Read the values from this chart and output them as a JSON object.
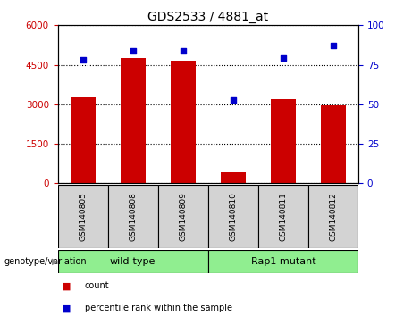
{
  "title": "GDS2533 / 4881_at",
  "categories": [
    "GSM140805",
    "GSM140808",
    "GSM140809",
    "GSM140810",
    "GSM140811",
    "GSM140812"
  ],
  "bar_values": [
    3250,
    4750,
    4650,
    420,
    3200,
    2950
  ],
  "scatter_values": [
    78,
    84,
    84,
    53,
    79,
    87
  ],
  "bar_color": "#cc0000",
  "scatter_color": "#0000cc",
  "group_label_prefix": "genotype/variation",
  "group_ranges": [
    [
      -0.5,
      2.5,
      "wild-type"
    ],
    [
      2.5,
      5.5,
      "Rap1 mutant"
    ]
  ],
  "group_color": "#90ee90",
  "ylim_left": [
    0,
    6000
  ],
  "ylim_right": [
    0,
    100
  ],
  "yticks_left": [
    0,
    1500,
    3000,
    4500,
    6000
  ],
  "yticks_right": [
    0,
    25,
    50,
    75,
    100
  ],
  "legend_items": [
    {
      "label": "count",
      "color": "#cc0000"
    },
    {
      "label": "percentile rank within the sample",
      "color": "#0000cc"
    }
  ],
  "grid_style": "dotted",
  "background_color": "#ffffff",
  "tick_label_color_left": "#cc0000",
  "tick_label_color_right": "#0000cc",
  "bar_width": 0.5,
  "label_box_color": "#d3d3d3",
  "n_categories": 6
}
